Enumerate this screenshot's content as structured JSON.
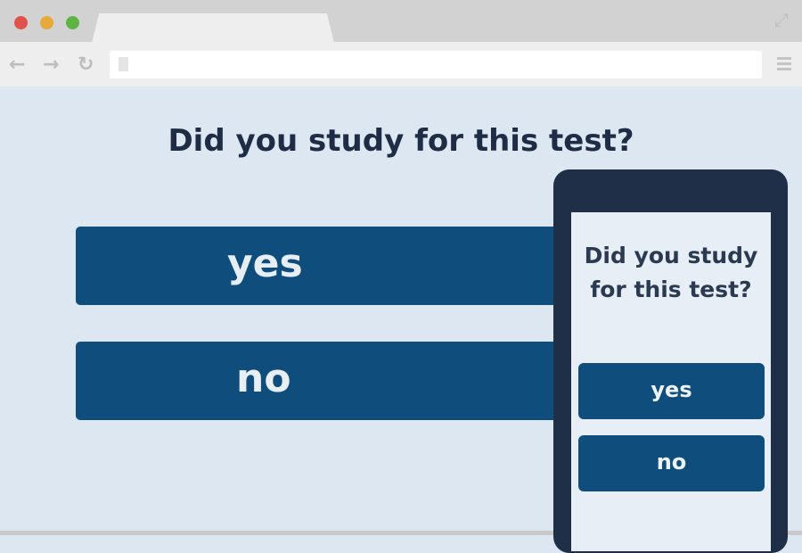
{
  "browser": {
    "window_controls": [
      {
        "name": "close",
        "color": "#e0524b"
      },
      {
        "name": "minimize",
        "color": "#e6a93a"
      },
      {
        "name": "maximize",
        "color": "#5fb544"
      }
    ],
    "address_value": ""
  },
  "page": {
    "question": "Did you study for this test?",
    "yes_label": "yes",
    "no_label": "no"
  },
  "mobile": {
    "question_line1": "Did you study",
    "question_line2": "for this test?",
    "yes_label": "yes",
    "no_label": "no"
  },
  "colors": {
    "button": "#0f4e7c",
    "phone": "#1f2f47",
    "background": "#dce7f1"
  }
}
